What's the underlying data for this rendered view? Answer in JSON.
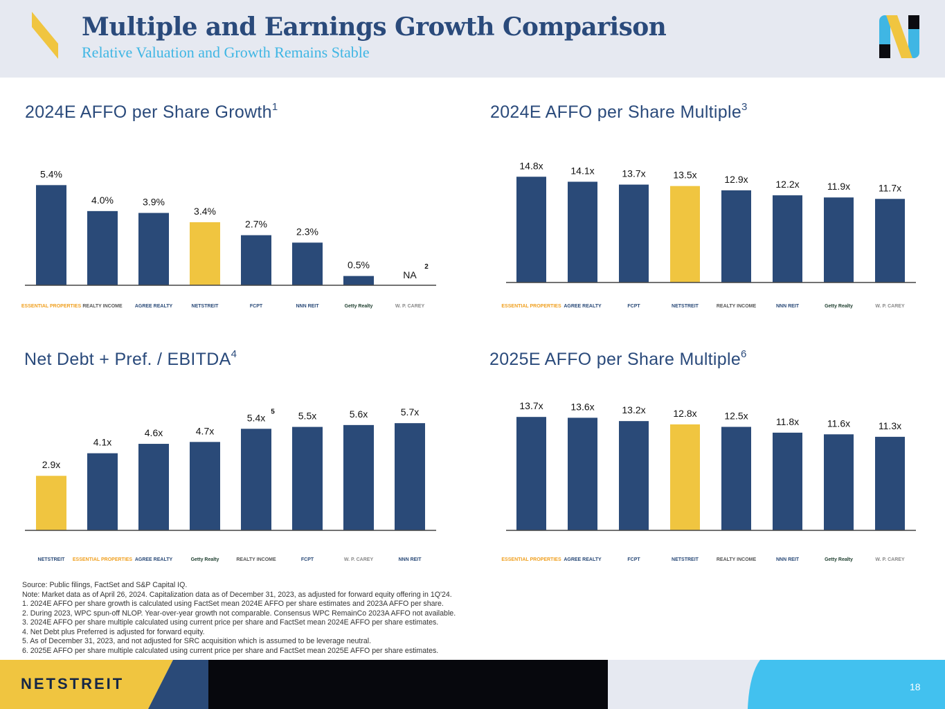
{
  "header": {
    "title": "Multiple and Earnings Growth Comparison",
    "subtitle": "Relative Valuation and Growth Remains Stable"
  },
  "colors": {
    "navy": "#2a4a78",
    "gold": "#f0c540",
    "accent": "#3fb6e4",
    "dark": "#152746"
  },
  "chart_data": [
    {
      "id": "growth",
      "type": "bar",
      "title": "2024E AFFO per Share Growth",
      "title_sup": "1",
      "unit": "percent",
      "categories": [
        "ESSENTIAL PROPERTIES",
        "REALTY INCOME",
        "AGREE REALTY",
        "NETSTREIT",
        "FCPT",
        "NNN REIT",
        "Getty Realty",
        "W. P. CAREY"
      ],
      "values": [
        5.4,
        4.0,
        3.9,
        3.4,
        2.7,
        2.3,
        0.5,
        null
      ],
      "labels": [
        "5.4%",
        "4.0%",
        "3.9%",
        "3.4%",
        "2.7%",
        "2.3%",
        "0.5%",
        "NA"
      ],
      "highlight_index": 3,
      "label_notes": [
        {
          "index": 7,
          "text": "2"
        }
      ],
      "ylim": [
        0,
        5.6
      ]
    },
    {
      "id": "mult24",
      "type": "bar",
      "title": "2024E AFFO per Share Multiple",
      "title_sup": "3",
      "unit": "x",
      "categories": [
        "ESSENTIAL PROPERTIES",
        "AGREE REALTY",
        "FCPT",
        "NETSTREIT",
        "REALTY INCOME",
        "NNN REIT",
        "Getty Realty",
        "W. P. CAREY"
      ],
      "values": [
        14.8,
        14.1,
        13.7,
        13.5,
        12.9,
        12.2,
        11.9,
        11.7
      ],
      "labels": [
        "14.8x",
        "14.1x",
        "13.7x",
        "13.5x",
        "12.9x",
        "12.2x",
        "11.9x",
        "11.7x"
      ],
      "highlight_index": 3,
      "label_notes": [],
      "ylim": [
        0,
        15.6
      ]
    },
    {
      "id": "debt",
      "type": "bar",
      "title": "Net Debt + Pref. / EBITDA",
      "title_sup": "4",
      "unit": "x",
      "categories": [
        "NETSTREIT",
        "ESSENTIAL PROPERTIES",
        "AGREE REALTY",
        "Getty Realty",
        "REALTY INCOME",
        "FCPT",
        "W. P. CAREY",
        "NNN REIT"
      ],
      "values": [
        2.9,
        4.1,
        4.6,
        4.7,
        5.4,
        5.5,
        5.6,
        5.7
      ],
      "labels": [
        "2.9x",
        "4.1x",
        "4.6x",
        "4.7x",
        "5.4x",
        "5.5x",
        "5.6x",
        "5.7x"
      ],
      "highlight_index": 0,
      "label_notes": [
        {
          "index": 4,
          "text": "5"
        }
      ],
      "ylim": [
        0,
        6.0
      ]
    },
    {
      "id": "mult25",
      "type": "bar",
      "title": "2025E AFFO per Share Multiple",
      "title_sup": "6",
      "unit": "x",
      "categories": [
        "ESSENTIAL PROPERTIES",
        "AGREE REALTY",
        "FCPT",
        "NETSTREIT",
        "REALTY INCOME",
        "NNN REIT",
        "Getty Realty",
        "W. P. CAREY"
      ],
      "values": [
        13.7,
        13.6,
        13.2,
        12.8,
        12.5,
        11.8,
        11.6,
        11.3
      ],
      "labels": [
        "13.7x",
        "13.6x",
        "13.2x",
        "12.8x",
        "12.5x",
        "11.8x",
        "11.6x",
        "11.3x"
      ],
      "highlight_index": 3,
      "label_notes": [],
      "ylim": [
        0,
        14.3
      ]
    }
  ],
  "footnotes": {
    "source": "Source: Public filings, FactSet and S&P Capital IQ.",
    "note": "Note: Market data as of April 26, 2024. Capitalization data as of December 31, 2023, as adjusted for forward equity offering in 1Q'24.",
    "items": [
      "1.  2024E AFFO per share growth is calculated using FactSet mean 2024E AFFO per share estimates and 2023A AFFO per share.",
      "2.  During 2023, WPC spun-off NLOP. Year-over-year growth not comparable. Consensus WPC RemainCo 2023A AFFO not available.",
      "3.  2024E AFFO per share multiple calculated using current price per share and FactSet mean 2024E AFFO per share estimates.",
      "4.  Net Debt plus Preferred is adjusted for forward equity.",
      "5.  As of December 31, 2023, and not adjusted for SRC acquisition which is assumed to be leverage neutral.",
      "6.  2025E AFFO per share multiple calculated using current price per share and FactSet mean 2025E AFFO per share estimates."
    ]
  },
  "footer": {
    "brand": "NETSTREIT",
    "page_number": "18"
  }
}
